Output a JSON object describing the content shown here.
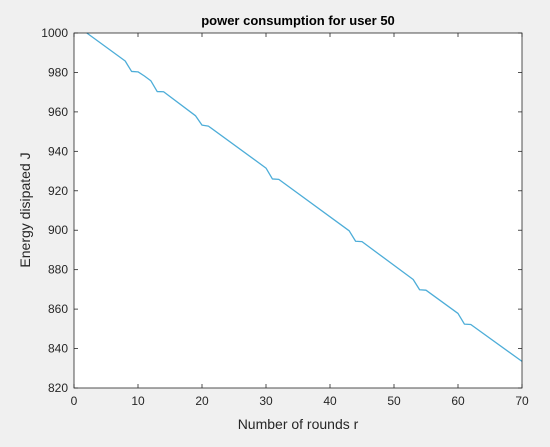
{
  "chart_data": {
    "type": "line",
    "title": "power consumption for user 50",
    "xlabel": "Number of rounds r",
    "ylabel": "Energy disipated J",
    "xlim": [
      0,
      70
    ],
    "ylim": [
      820,
      1000
    ],
    "xticks": [
      0,
      10,
      20,
      30,
      40,
      50,
      60,
      70
    ],
    "yticks": [
      820,
      840,
      860,
      880,
      900,
      920,
      940,
      960,
      980,
      1000
    ],
    "grid": false,
    "line_color": "#4dadd8",
    "series": [
      {
        "x": [
          2,
          8,
          9,
          10,
          11,
          12,
          13,
          14,
          19,
          20,
          21,
          30,
          31,
          32,
          43,
          44,
          45,
          53,
          54,
          55,
          60,
          61,
          62,
          70
        ],
        "y": [
          1000,
          985.8,
          980.5,
          980.3,
          978.2,
          975.8,
          970.3,
          970.2,
          958.0,
          953.3,
          952.8,
          931.5,
          926.0,
          925.8,
          899.7,
          894.4,
          894.2,
          875.0,
          869.8,
          869.6,
          857.8,
          852.4,
          852.2,
          833.5
        ]
      }
    ]
  }
}
